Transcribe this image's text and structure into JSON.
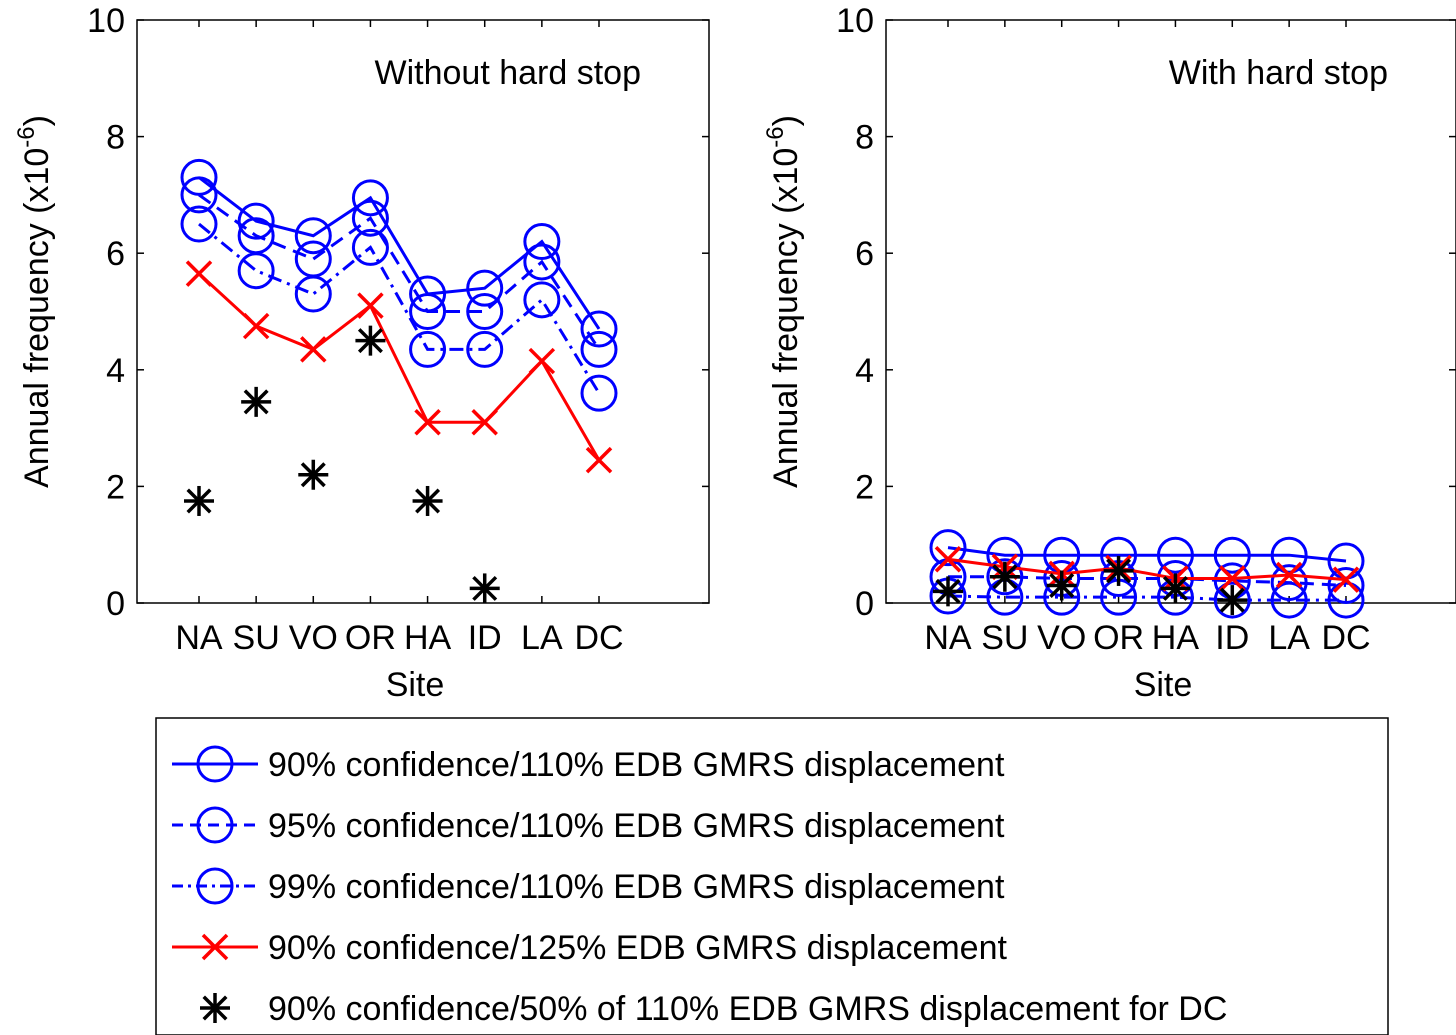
{
  "chart_data": [
    {
      "type": "line",
      "annotation": "Without hard stop",
      "xlabel": "Site",
      "ylabel": "Annual frequency (x10",
      "ylabel_exp": "-6",
      "ylabel_close": ")",
      "categories": [
        "NA",
        "SU",
        "VO",
        "OR",
        "HA",
        "ID",
        "LA",
        "DC"
      ],
      "ylim": [
        0,
        10
      ],
      "yticks": [
        0,
        2,
        4,
        6,
        8,
        10
      ],
      "grid": false,
      "series": [
        {
          "name": "90% confidence/110% EDB GMRS displacement",
          "values": [
            7.3,
            6.55,
            6.3,
            6.95,
            5.3,
            5.4,
            6.2,
            4.7
          ]
        },
        {
          "name": "95% confidence/110% EDB GMRS displacement",
          "values": [
            7.0,
            6.3,
            5.9,
            6.6,
            5.0,
            5.0,
            5.85,
            4.35
          ]
        },
        {
          "name": "99% confidence/110% EDB GMRS displacement",
          "values": [
            6.5,
            5.7,
            5.3,
            6.1,
            4.35,
            4.35,
            5.2,
            3.6
          ]
        },
        {
          "name": "90% confidence/125% EDB GMRS displacement",
          "values": [
            5.65,
            4.75,
            4.35,
            5.1,
            3.1,
            3.1,
            4.15,
            2.45
          ]
        },
        {
          "name": "90% confidence/50% of 110% EDB GMRS displacement for DC",
          "values": [
            1.75,
            3.45,
            2.2,
            4.5,
            1.75,
            0.25,
            null,
            null
          ]
        }
      ]
    },
    {
      "type": "line",
      "annotation": "With hard stop",
      "xlabel": "Site",
      "ylabel": "Annual frequency (x10",
      "ylabel_exp": "-6",
      "ylabel_close": ")",
      "categories": [
        "NA",
        "SU",
        "VO",
        "OR",
        "HA",
        "ID",
        "LA",
        "DC"
      ],
      "ylim": [
        0,
        10
      ],
      "yticks": [
        0,
        2,
        4,
        6,
        8,
        10
      ],
      "grid": false,
      "series": [
        {
          "name": "90% confidence/110% EDB GMRS displacement",
          "values": [
            0.95,
            0.82,
            0.82,
            0.82,
            0.82,
            0.82,
            0.82,
            0.72
          ]
        },
        {
          "name": "95% confidence/110% EDB GMRS displacement",
          "values": [
            0.45,
            0.45,
            0.42,
            0.42,
            0.42,
            0.38,
            0.35,
            0.3
          ]
        },
        {
          "name": "99% confidence/110% EDB GMRS displacement",
          "values": [
            0.12,
            0.1,
            0.1,
            0.1,
            0.1,
            0.05,
            0.05,
            0.05
          ]
        },
        {
          "name": "90% confidence/125% EDB GMRS displacement",
          "values": [
            0.75,
            0.62,
            0.5,
            0.6,
            0.42,
            0.42,
            0.48,
            0.4
          ]
        },
        {
          "name": "90% confidence/50% of 110% EDB GMRS displacement for DC",
          "values": [
            0.2,
            0.45,
            0.3,
            0.55,
            0.25,
            0.05,
            null,
            null
          ]
        }
      ]
    }
  ],
  "legend": {
    "placement": "bottom-center",
    "entries": [
      {
        "label": "90% confidence/110% EDB GMRS displacement",
        "color": "#0000ff",
        "dash": "solid",
        "marker": "circle"
      },
      {
        "label": "95% confidence/110% EDB GMRS displacement",
        "color": "#0000ff",
        "dash": "dashed",
        "marker": "circle"
      },
      {
        "label": "99% confidence/110% EDB GMRS displacement",
        "color": "#0000ff",
        "dash": "dashdot",
        "marker": "circle"
      },
      {
        "label": "90% confidence/125% EDB GMRS displacement",
        "color": "#ff0000",
        "dash": "solid",
        "marker": "x"
      },
      {
        "label": "90% confidence/50% of 110% EDB GMRS displacement for DC",
        "color": "#000000",
        "dash": "none",
        "marker": "star"
      }
    ]
  }
}
